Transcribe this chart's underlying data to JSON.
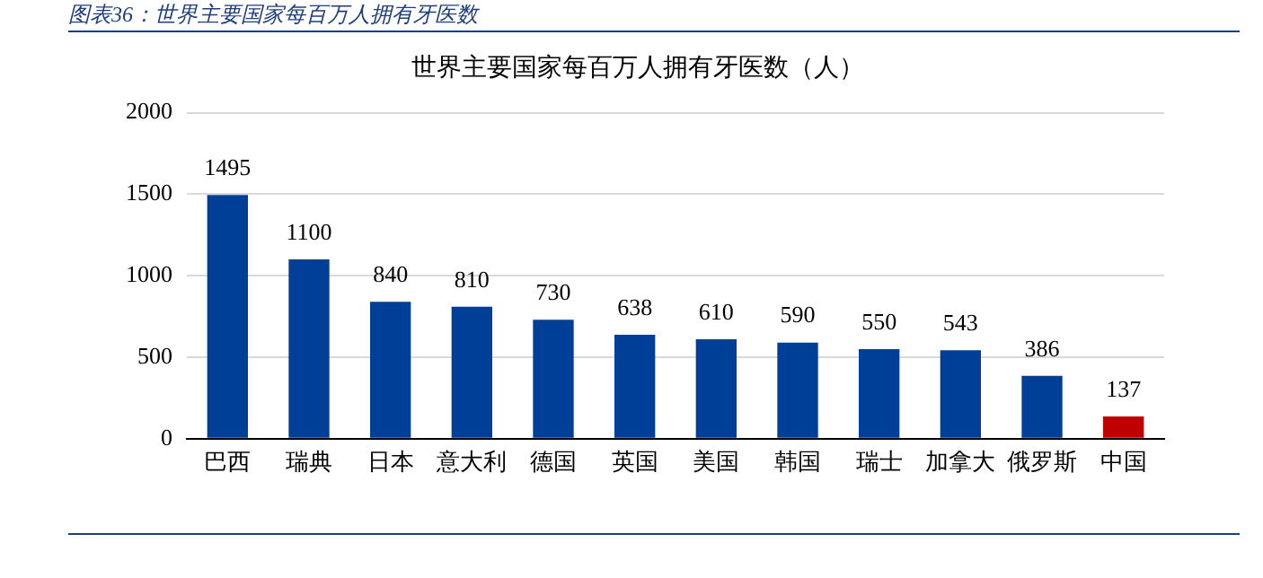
{
  "chart_data": {
    "type": "bar",
    "title": "世界主要国家每百万人拥有牙医数（人）",
    "annotations": [
      "图表36：世界主要国家每百万人拥有牙医数"
    ],
    "categories": [
      "巴西",
      "瑞典",
      "日本",
      "意大利",
      "德国",
      "英国",
      "美国",
      "韩国",
      "瑞士",
      "加拿大",
      "俄罗斯",
      "中国"
    ],
    "values": [
      1495,
      1100,
      840,
      810,
      730,
      638,
      610,
      590,
      550,
      543,
      386,
      137
    ],
    "colors": [
      "#003f98",
      "#003f98",
      "#003f98",
      "#003f98",
      "#003f98",
      "#003f98",
      "#003f98",
      "#003f98",
      "#003f98",
      "#003f98",
      "#003f98",
      "#c00000"
    ],
    "ylim": [
      0,
      2000
    ],
    "yticks": [
      0,
      500,
      1000,
      1500,
      2000
    ],
    "grid": "y",
    "data_labels": true,
    "legend": false
  }
}
